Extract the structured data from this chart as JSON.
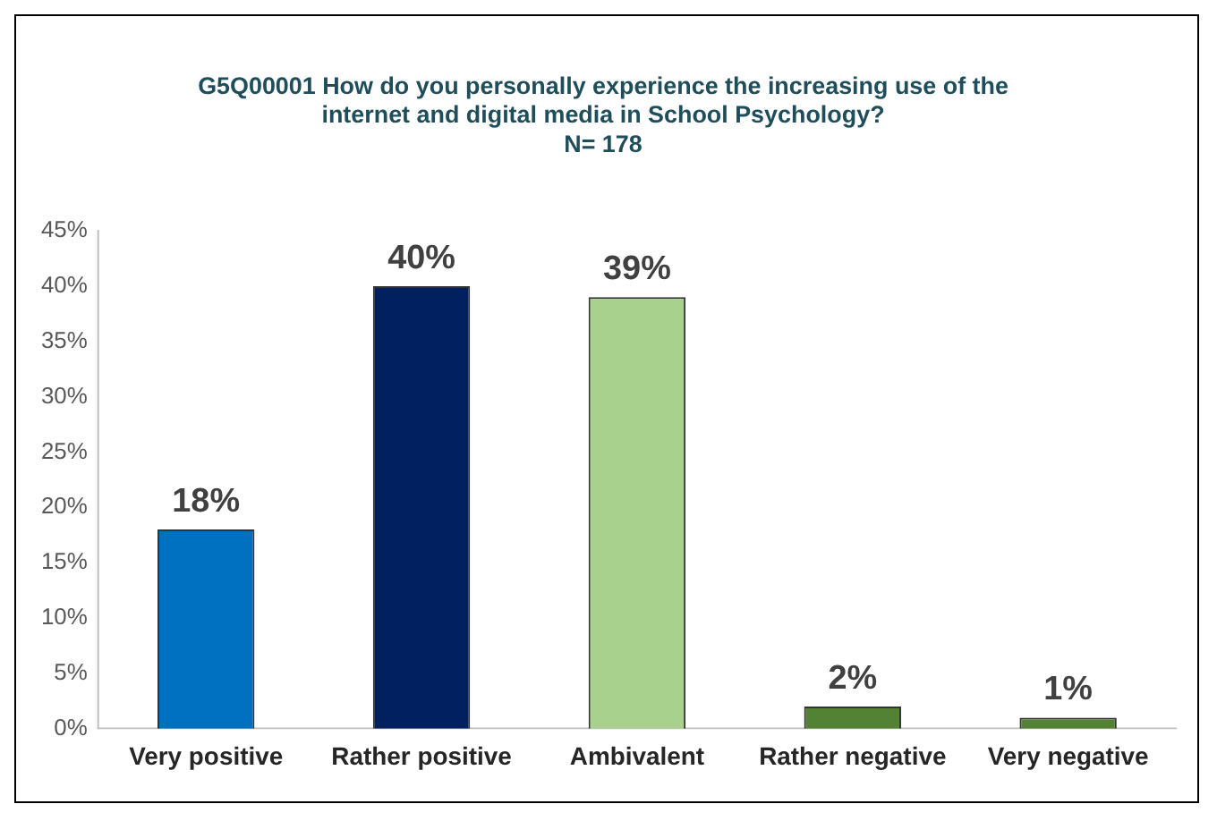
{
  "chart_data": {
    "type": "bar",
    "title": "G5Q00001 How do you personally experience the increasing use of the\ninternet and digital media in School Psychology?\nN= 178",
    "categories": [
      "Very positive",
      "Rather positive",
      "Ambivalent",
      "Rather negative",
      "Very negative"
    ],
    "values": [
      18,
      40,
      39,
      2,
      1
    ],
    "colors": [
      "#0070c0",
      "#002060",
      "#a9d18e",
      "#548235",
      "#548235"
    ],
    "value_labels": [
      "18%",
      "40%",
      "39%",
      "2%",
      "1%"
    ],
    "ylim": [
      0,
      45
    ],
    "yticks": [
      {
        "value": 0,
        "label": "0%"
      },
      {
        "value": 5,
        "label": "5%"
      },
      {
        "value": 10,
        "label": "10%"
      },
      {
        "value": 15,
        "label": "15%"
      },
      {
        "value": 20,
        "label": "20%"
      },
      {
        "value": 25,
        "label": "25%"
      },
      {
        "value": 30,
        "label": "30%"
      },
      {
        "value": 35,
        "label": "35%"
      },
      {
        "value": 40,
        "label": "40%"
      },
      {
        "value": 45,
        "label": "45%"
      }
    ],
    "grid": false,
    "legend": false
  }
}
